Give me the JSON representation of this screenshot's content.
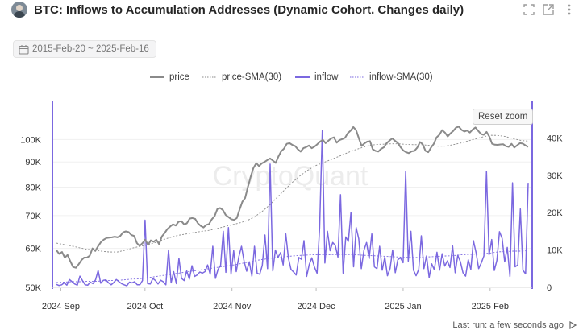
{
  "header": {
    "title": "BTC: Inflows to Accumulation Addresses (Dynamic Cohort. Changes daily)"
  },
  "date_range": {
    "label": "2015-Feb-20 ~ 2025-Feb-16"
  },
  "legend": {
    "items": [
      {
        "label": "price"
      },
      {
        "label": "price-SMA(30)"
      },
      {
        "label": "inflow"
      },
      {
        "label": "inflow-SMA(30)"
      }
    ]
  },
  "watermark": "CryptoQuant",
  "reset_zoom": "Reset zoom",
  "footer": {
    "last_run": "Last run: a few seconds ago"
  },
  "colors": {
    "price": "#8a8a8a",
    "inflow": "#7b68e0",
    "axis": "#7b68e0"
  },
  "chart_data": {
    "type": "line",
    "title": "BTC: Inflows to Accumulation Addresses (Dynamic Cohort. Changes daily)",
    "x_range": [
      "2024-08-29",
      "2025-02-16"
    ],
    "x_ticks": [
      {
        "date": "2024-09-01",
        "label": "2024 Sep"
      },
      {
        "date": "2024-10-01",
        "label": "2024 Oct"
      },
      {
        "date": "2024-11-01",
        "label": "2024 Nov"
      },
      {
        "date": "2024-12-01",
        "label": "2024 Dec"
      },
      {
        "date": "2025-01-01",
        "label": "2025 Jan"
      },
      {
        "date": "2025-02-01",
        "label": "2025 Feb"
      }
    ],
    "left_axis": {
      "scale": "log",
      "range": [
        50000,
        120000
      ],
      "ticks": [
        {
          "value": 50000,
          "label": "50K"
        },
        {
          "value": 60000,
          "label": "60K"
        },
        {
          "value": 70000,
          "label": "70K"
        },
        {
          "value": 80000,
          "label": "80K"
        },
        {
          "value": 90000,
          "label": "90K"
        },
        {
          "value": 100000,
          "label": "100K"
        }
      ]
    },
    "right_axis": {
      "scale": "linear",
      "range": [
        0,
        50000
      ],
      "ticks": [
        {
          "value": 0,
          "label": "0"
        },
        {
          "value": 10000,
          "label": "10K"
        },
        {
          "value": 20000,
          "label": "20K"
        },
        {
          "value": 30000,
          "label": "30K"
        },
        {
          "value": 40000,
          "label": "40K"
        }
      ]
    },
    "series": [
      {
        "name": "price",
        "axis": "left",
        "style": "solid",
        "values": [
          59500,
          58500,
          59000,
          57500,
          58200,
          56500,
          55000,
          54800,
          55700,
          56800,
          57500,
          57500,
          58000,
          60000,
          59300,
          60600,
          61800,
          62500,
          63000,
          63100,
          63200,
          63400,
          63200,
          63600,
          64700,
          65000,
          64800,
          63900,
          63600,
          61500,
          60700,
          61500,
          62500,
          61000,
          62300,
          61900,
          62500,
          61200,
          63500,
          64500,
          65700,
          66500,
          67200,
          66800,
          68000,
          68200,
          67200,
          67500,
          69000,
          69200,
          68900,
          67500,
          66700,
          66200,
          67000,
          67300,
          68800,
          69800,
          72200,
          72500,
          71800,
          70200,
          69500,
          68800,
          68600,
          69200,
          72000,
          74700,
          76000,
          80000,
          84000,
          87500,
          89500,
          88300,
          89400,
          90000,
          90800,
          91500,
          90600,
          89600,
          92300,
          94600,
          95800,
          98000,
          98300,
          97500,
          97000,
          95500,
          94500,
          96000,
          96500,
          97200,
          96000,
          96700,
          97800,
          99000,
          99800,
          98300,
          99400,
          100500,
          101000,
          98500,
          99700,
          100200,
          100800,
          103000,
          104200,
          106000,
          104500,
          100500,
          97000,
          98200,
          99000,
          99200,
          95500,
          94800,
          94500,
          95700,
          96400,
          98300,
          99400,
          100500,
          99400,
          98400,
          96500,
          95000,
          94200,
          93800,
          94600,
          94800,
          96200,
          98800,
          97800,
          94800,
          94200,
          96300,
          98000,
          101000,
          102200,
          104500,
          103300,
          101400,
          102900,
          104100,
          105700,
          106200,
          104600,
          103800,
          104300,
          103300,
          104800,
          105800,
          104100,
          102600,
          102200,
          103600,
          101400,
          98000,
          97600,
          97500,
          97700,
          97800,
          96900,
          96600,
          98000,
          96300,
          97300,
          98300,
          98100,
          97300,
          96600
        ]
      },
      {
        "name": "price-SMA(30)",
        "axis": "left",
        "style": "dotted",
        "values": [
          61500,
          61100,
          60700,
          60200,
          59800,
          59500,
          59200,
          59000,
          59000,
          59500,
          60100,
          60600,
          61000,
          61700,
          62500,
          63200,
          63800,
          64200,
          64600,
          65000,
          65300,
          65800,
          66400,
          67000,
          67600,
          68300,
          69500,
          71300,
          73500,
          76200,
          79000,
          81800,
          84300,
          86500,
          88400,
          89600,
          90900,
          92200,
          93600,
          95000,
          96100,
          97100,
          97700,
          97800,
          98000,
          98000,
          97700,
          97600,
          97600,
          97300,
          96900,
          96900,
          97500,
          98200,
          99200,
          100200,
          101200,
          102000,
          101900,
          101400,
          100400,
          99600,
          99200
        ]
      },
      {
        "name": "inflow",
        "axis": "right",
        "style": "solid",
        "values": [
          800,
          500,
          700,
          1200,
          600,
          2100,
          1500,
          900,
          600,
          3000,
          1800,
          700,
          600,
          1400,
          1000,
          2000,
          4500,
          1100,
          1900,
          2000,
          1200,
          700,
          1300,
          2100,
          1500,
          1000,
          700,
          400,
          1400,
          1200,
          1500,
          700,
          700,
          1800,
          18000,
          1000,
          900,
          2400,
          1800,
          900,
          1900,
          1500,
          700,
          10000,
          1200,
          4200,
          1000,
          7800,
          2400,
          1800,
          4400,
          2200,
          5800,
          2900,
          3300,
          4100,
          3800,
          4200,
          6000,
          3500,
          11000,
          2400,
          4800,
          5900,
          15000,
          4000,
          16000,
          3500,
          9800,
          4200,
          8200,
          11000,
          7000,
          4300,
          6800,
          3000,
          11000,
          3800,
          3500,
          5900,
          14000,
          5000,
          33000,
          4400,
          10000,
          8000,
          9300,
          6000,
          14300,
          7800,
          4800,
          4100,
          3300,
          8000,
          7500,
          12500,
          2900,
          6100,
          7900,
          5400,
          3800,
          16000,
          42000,
          6500,
          15000,
          9800,
          12000,
          11200,
          8100,
          24800,
          3800,
          13500,
          12300,
          20000,
          5500,
          16000,
          13000,
          5000,
          10000,
          12000,
          7700,
          14300,
          5500,
          5000,
          11000,
          4600,
          8100,
          3100,
          5000,
          10000,
          3900,
          7400,
          7900,
          6600,
          31000,
          7000,
          15000,
          4600,
          3100,
          4800,
          13800,
          5000,
          8400,
          2600,
          6300,
          4700,
          9400,
          4600,
          9000,
          5700,
          7100,
          5300,
          11100,
          3900,
          8600,
          6800,
          3900,
          3000,
          7400,
          4800,
          12500,
          9300,
          5000,
          6500,
          8400,
          31000,
          8700,
          12800,
          4500,
          7200,
          14900,
          13100,
          6800,
          10700,
          2900,
          28000,
          5500,
          6000,
          21000,
          4600,
          3600,
          28000
        ]
      },
      {
        "name": "inflow-SMA(30)",
        "axis": "right",
        "style": "dotted",
        "values": [
          1300,
          1400,
          1500,
          1500,
          1600,
          1600,
          1700,
          1800,
          1800,
          2000,
          2200,
          2300,
          2500,
          2800,
          3100,
          3400,
          3700,
          4000,
          4300,
          4600,
          4900,
          5200,
          5500,
          5800,
          6100,
          6500,
          6900,
          7300,
          7600,
          7900,
          8100,
          8300,
          8500,
          8600,
          8700,
          8700,
          8700,
          8800,
          8800,
          8800,
          8700,
          8600,
          8500,
          8400,
          8300,
          8200,
          8100,
          8000,
          8000,
          8100,
          8200,
          8300,
          8400,
          8500,
          8700,
          8800,
          8900,
          9000,
          9200,
          9500,
          9600,
          9700,
          9700,
          9800
        ]
      }
    ]
  }
}
